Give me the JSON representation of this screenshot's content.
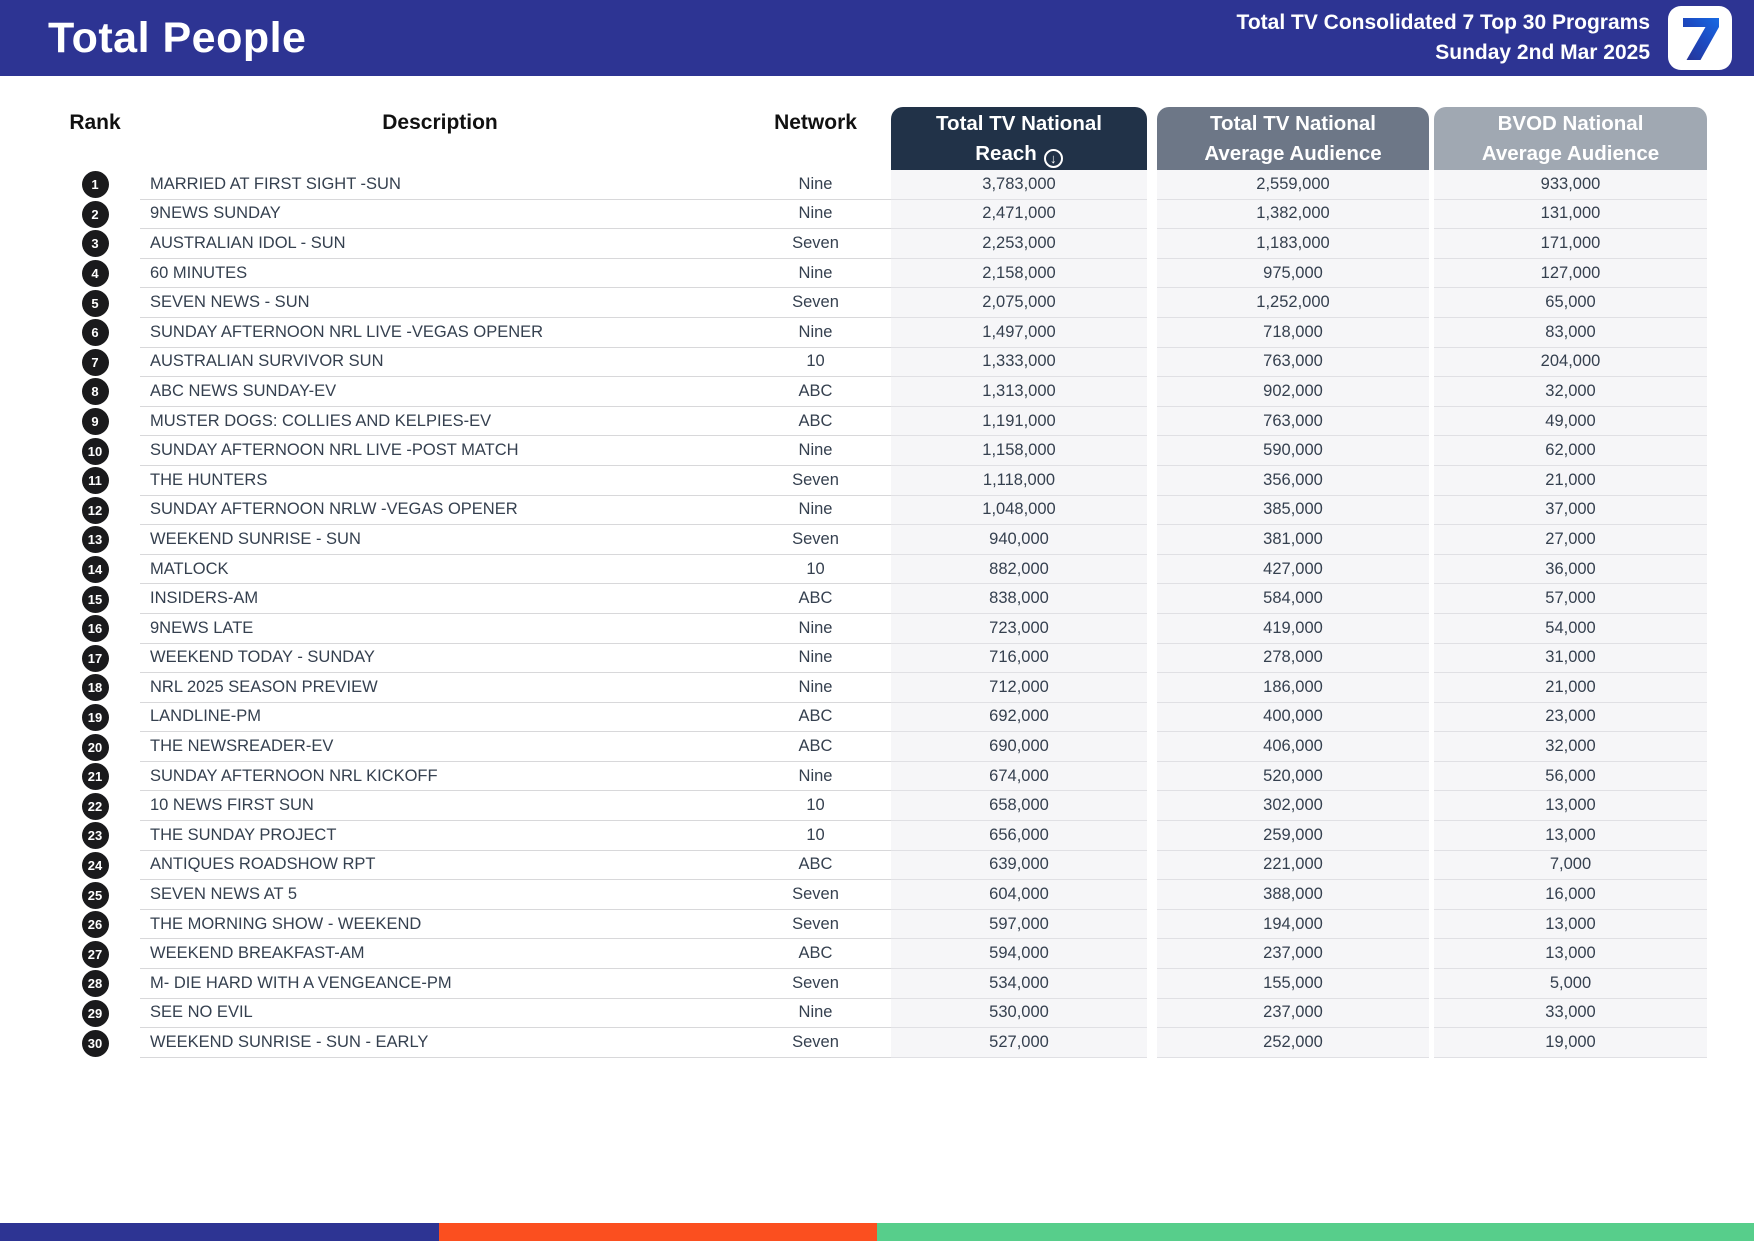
{
  "header": {
    "title": "Total People",
    "subtitle_line1": "Total TV Consolidated 7 Top 30 Programs",
    "subtitle_line2": "Sunday 2nd Mar 2025",
    "logo": "seven-network-7",
    "bg_color": "#2D3493"
  },
  "table": {
    "columns": {
      "rank": "Rank",
      "description": "Description",
      "network": "Network",
      "reach_line1": "Total TV National",
      "reach_line2": "Reach",
      "reach_sort_icon": "circled-down-arrow",
      "avg_line1": "Total TV National",
      "avg_line2": "Average Audience",
      "bvod_line1": "BVOD National",
      "bvod_line2": "Average Audience"
    },
    "header_colors": {
      "reach": "#213248",
      "avg": "#6D7787",
      "bvod": "#A0A8B2"
    },
    "rows": [
      {
        "rank": "1",
        "description": "MARRIED AT FIRST SIGHT -SUN",
        "network": "Nine",
        "reach": "3,783,000",
        "avg": "2,559,000",
        "bvod": "933,000"
      },
      {
        "rank": "2",
        "description": "9NEWS SUNDAY",
        "network": "Nine",
        "reach": "2,471,000",
        "avg": "1,382,000",
        "bvod": "131,000"
      },
      {
        "rank": "3",
        "description": "AUSTRALIAN IDOL - SUN",
        "network": "Seven",
        "reach": "2,253,000",
        "avg": "1,183,000",
        "bvod": "171,000"
      },
      {
        "rank": "4",
        "description": "60 MINUTES",
        "network": "Nine",
        "reach": "2,158,000",
        "avg": "975,000",
        "bvod": "127,000"
      },
      {
        "rank": "5",
        "description": "SEVEN NEWS - SUN",
        "network": "Seven",
        "reach": "2,075,000",
        "avg": "1,252,000",
        "bvod": "65,000"
      },
      {
        "rank": "6",
        "description": "SUNDAY AFTERNOON NRL LIVE -VEGAS OPENER",
        "network": "Nine",
        "reach": "1,497,000",
        "avg": "718,000",
        "bvod": "83,000"
      },
      {
        "rank": "7",
        "description": "AUSTRALIAN SURVIVOR SUN",
        "network": "10",
        "reach": "1,333,000",
        "avg": "763,000",
        "bvod": "204,000"
      },
      {
        "rank": "8",
        "description": "ABC NEWS SUNDAY-EV",
        "network": "ABC",
        "reach": "1,313,000",
        "avg": "902,000",
        "bvod": "32,000"
      },
      {
        "rank": "9",
        "description": "MUSTER DOGS: COLLIES AND KELPIES-EV",
        "network": "ABC",
        "reach": "1,191,000",
        "avg": "763,000",
        "bvod": "49,000"
      },
      {
        "rank": "10",
        "description": "SUNDAY AFTERNOON NRL LIVE -POST MATCH",
        "network": "Nine",
        "reach": "1,158,000",
        "avg": "590,000",
        "bvod": "62,000"
      },
      {
        "rank": "11",
        "description": "THE HUNTERS",
        "network": "Seven",
        "reach": "1,118,000",
        "avg": "356,000",
        "bvod": "21,000"
      },
      {
        "rank": "12",
        "description": "SUNDAY AFTERNOON NRLW -VEGAS OPENER",
        "network": "Nine",
        "reach": "1,048,000",
        "avg": "385,000",
        "bvod": "37,000"
      },
      {
        "rank": "13",
        "description": "WEEKEND SUNRISE - SUN",
        "network": "Seven",
        "reach": "940,000",
        "avg": "381,000",
        "bvod": "27,000"
      },
      {
        "rank": "14",
        "description": "MATLOCK",
        "network": "10",
        "reach": "882,000",
        "avg": "427,000",
        "bvod": "36,000"
      },
      {
        "rank": "15",
        "description": "INSIDERS-AM",
        "network": "ABC",
        "reach": "838,000",
        "avg": "584,000",
        "bvod": "57,000"
      },
      {
        "rank": "16",
        "description": "9NEWS LATE",
        "network": "Nine",
        "reach": "723,000",
        "avg": "419,000",
        "bvod": "54,000"
      },
      {
        "rank": "17",
        "description": "WEEKEND TODAY - SUNDAY",
        "network": "Nine",
        "reach": "716,000",
        "avg": "278,000",
        "bvod": "31,000"
      },
      {
        "rank": "18",
        "description": "NRL 2025 SEASON PREVIEW",
        "network": "Nine",
        "reach": "712,000",
        "avg": "186,000",
        "bvod": "21,000"
      },
      {
        "rank": "19",
        "description": "LANDLINE-PM",
        "network": "ABC",
        "reach": "692,000",
        "avg": "400,000",
        "bvod": "23,000"
      },
      {
        "rank": "20",
        "description": "THE NEWSREADER-EV",
        "network": "ABC",
        "reach": "690,000",
        "avg": "406,000",
        "bvod": "32,000"
      },
      {
        "rank": "21",
        "description": "SUNDAY AFTERNOON NRL KICKOFF",
        "network": "Nine",
        "reach": "674,000",
        "avg": "520,000",
        "bvod": "56,000"
      },
      {
        "rank": "22",
        "description": "10 NEWS FIRST SUN",
        "network": "10",
        "reach": "658,000",
        "avg": "302,000",
        "bvod": "13,000"
      },
      {
        "rank": "23",
        "description": "THE SUNDAY PROJECT",
        "network": "10",
        "reach": "656,000",
        "avg": "259,000",
        "bvod": "13,000"
      },
      {
        "rank": "24",
        "description": "ANTIQUES ROADSHOW RPT",
        "network": "ABC",
        "reach": "639,000",
        "avg": "221,000",
        "bvod": "7,000"
      },
      {
        "rank": "25",
        "description": "SEVEN NEWS AT 5",
        "network": "Seven",
        "reach": "604,000",
        "avg": "388,000",
        "bvod": "16,000"
      },
      {
        "rank": "26",
        "description": "THE MORNING SHOW - WEEKEND",
        "network": "Seven",
        "reach": "597,000",
        "avg": "194,000",
        "bvod": "13,000"
      },
      {
        "rank": "27",
        "description": "WEEKEND BREAKFAST-AM",
        "network": "ABC",
        "reach": "594,000",
        "avg": "237,000",
        "bvod": "13,000"
      },
      {
        "rank": "28",
        "description": "M- DIE HARD WITH A VENGEANCE-PM",
        "network": "Seven",
        "reach": "534,000",
        "avg": "155,000",
        "bvod": "5,000"
      },
      {
        "rank": "29",
        "description": "SEE NO EVIL",
        "network": "Nine",
        "reach": "530,000",
        "avg": "237,000",
        "bvod": "33,000"
      },
      {
        "rank": "30",
        "description": "WEEKEND SUNRISE - SUN - EARLY",
        "network": "Seven",
        "reach": "527,000",
        "avg": "252,000",
        "bvod": "19,000"
      }
    ]
  },
  "footer": {
    "segments": [
      {
        "name": "blue",
        "color": "#2D3493",
        "width": "25%"
      },
      {
        "name": "orange",
        "color": "#FB4F1F",
        "width": "25%"
      },
      {
        "name": "green",
        "color": "#57CE8B",
        "width": "50%"
      }
    ]
  }
}
